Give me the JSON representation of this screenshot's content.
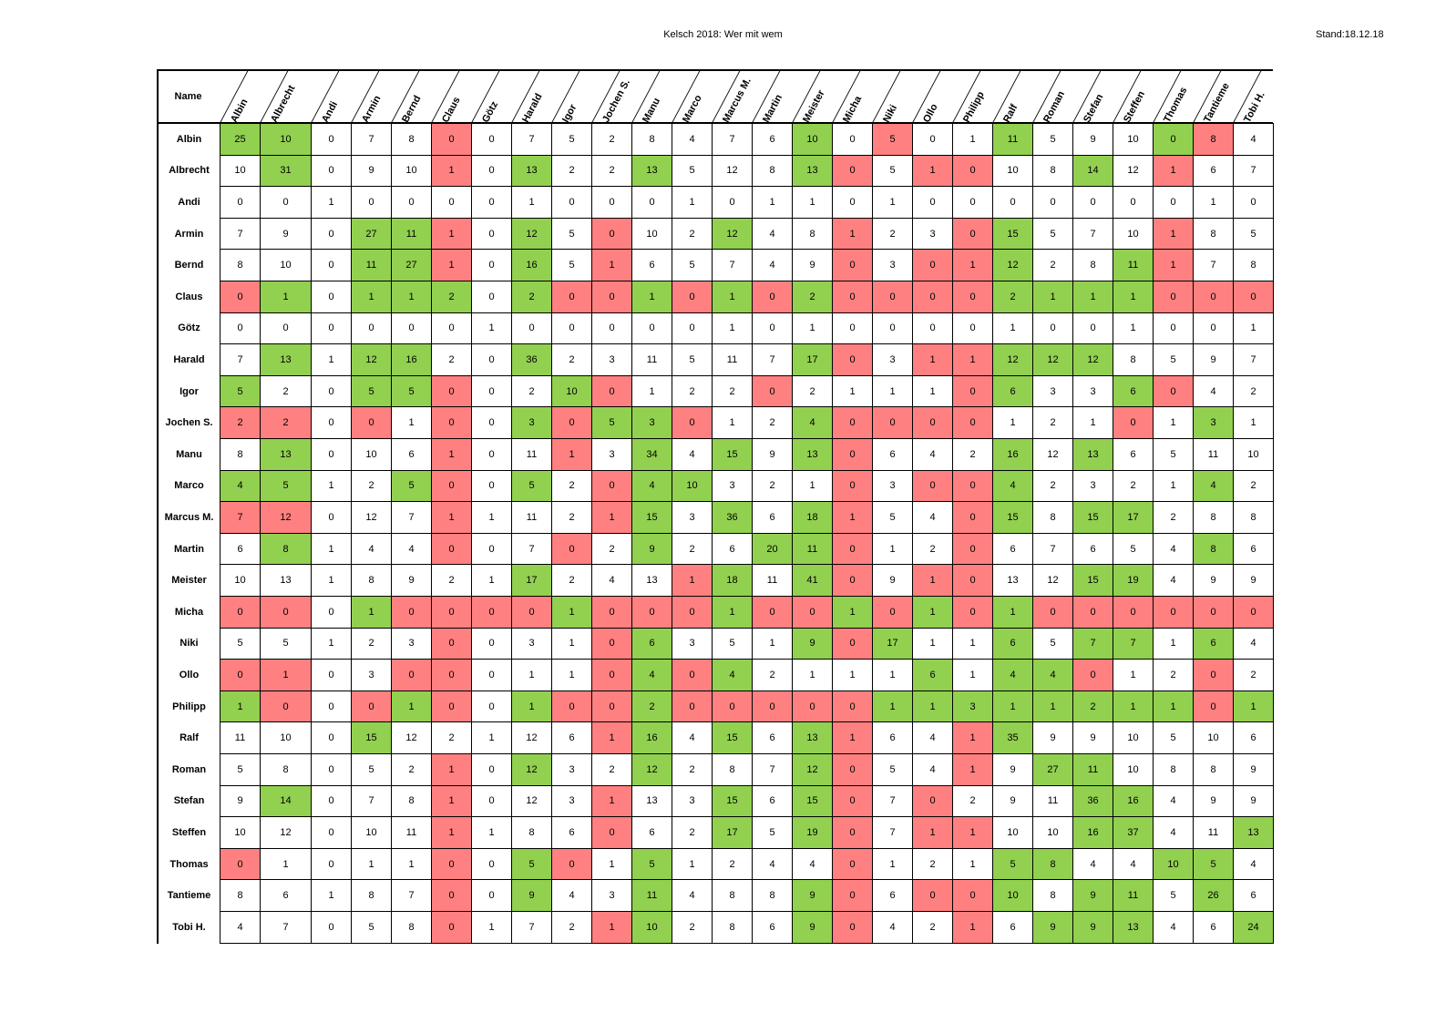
{
  "page": {
    "title": "Kelsch 2018: Wer mit wem",
    "stand": "Stand:18.12.18"
  },
  "table": {
    "corner_label": "Name",
    "names": [
      "Albin",
      "Albrecht",
      "Andi",
      "Armin",
      "Bernd",
      "Claus",
      "Götz",
      "Harald",
      "Igor",
      "Jochen S.",
      "Manu",
      "Marco",
      "Marcus M.",
      "Martin",
      "Meister",
      "Micha",
      "Niki",
      "Ollo",
      "Philipp",
      "Ralf",
      "Roman",
      "Stefan",
      "Steffen",
      "Thomas",
      "Tantieme",
      "Tobi H."
    ],
    "colors": {
      "green": "#92d050",
      "red": "#ff8080",
      "white": "#ffffff"
    },
    "rows": [
      {
        "values": [
          25,
          10,
          0,
          7,
          8,
          0,
          0,
          7,
          5,
          2,
          8,
          4,
          7,
          6,
          10,
          0,
          5,
          0,
          1,
          11,
          5,
          9,
          10,
          0,
          8,
          4
        ],
        "marks": "GG...R........G.R..G...GR.."
      },
      {
        "values": [
          10,
          31,
          0,
          9,
          10,
          1,
          0,
          13,
          2,
          2,
          13,
          5,
          12,
          8,
          13,
          0,
          5,
          1,
          0,
          10,
          8,
          14,
          12,
          1,
          6,
          7
        ],
        "marks": ".G...R.G..G...GR.RR..G.R.."
      },
      {
        "values": [
          0,
          0,
          1,
          0,
          0,
          0,
          0,
          1,
          0,
          0,
          0,
          1,
          0,
          1,
          1,
          0,
          1,
          0,
          0,
          0,
          0,
          0,
          0,
          0,
          1,
          0
        ],
        "marks": ".........................."
      },
      {
        "values": [
          7,
          9,
          0,
          27,
          11,
          1,
          0,
          12,
          5,
          0,
          10,
          2,
          12,
          4,
          8,
          1,
          2,
          3,
          0,
          15,
          5,
          7,
          10,
          1,
          8,
          5
        ],
        "marks": "...GGR.G.R..G..R..RG...R.."
      },
      {
        "values": [
          8,
          10,
          0,
          11,
          27,
          1,
          0,
          16,
          5,
          1,
          6,
          5,
          7,
          4,
          9,
          0,
          3,
          0,
          1,
          12,
          2,
          8,
          11,
          1,
          7,
          8
        ],
        "marks": "...GGR.G.R.....R.RRG..GR.."
      },
      {
        "values": [
          0,
          1,
          0,
          1,
          1,
          2,
          0,
          2,
          0,
          0,
          1,
          0,
          1,
          0,
          2,
          0,
          0,
          0,
          0,
          2,
          1,
          1,
          1,
          0,
          0,
          0
        ],
        "marks": "RG.GGG.GRRGRGRGRRRRGGGGRRR"
      },
      {
        "values": [
          0,
          0,
          0,
          0,
          0,
          0,
          1,
          0,
          0,
          0,
          0,
          0,
          1,
          0,
          1,
          0,
          0,
          0,
          0,
          1,
          0,
          0,
          1,
          0,
          0,
          1
        ],
        "marks": ".........................."
      },
      {
        "values": [
          7,
          13,
          1,
          12,
          16,
          2,
          0,
          36,
          2,
          3,
          11,
          5,
          11,
          7,
          17,
          0,
          3,
          1,
          1,
          12,
          12,
          12,
          8,
          5,
          9,
          7
        ],
        "marks": ".G.GG..G......GR.RRGGG...."
      },
      {
        "values": [
          5,
          2,
          0,
          5,
          5,
          0,
          0,
          2,
          10,
          0,
          1,
          2,
          2,
          0,
          2,
          1,
          1,
          1,
          0,
          6,
          3,
          3,
          6,
          0,
          4,
          2
        ],
        "marks": "G..GGR..GR...R....RG..GR.."
      },
      {
        "values": [
          2,
          2,
          0,
          0,
          1,
          0,
          0,
          3,
          0,
          5,
          3,
          0,
          1,
          2,
          4,
          0,
          0,
          0,
          0,
          1,
          2,
          1,
          0,
          1,
          3,
          1
        ],
        "marks": "RR.R.R.GRGGR..GRRRR...R.G."
      },
      {
        "values": [
          8,
          13,
          0,
          10,
          6,
          1,
          0,
          11,
          1,
          3,
          34,
          4,
          15,
          9,
          13,
          0,
          6,
          4,
          2,
          16,
          12,
          13,
          6,
          5,
          11,
          10
        ],
        "marks": ".G...R..R.G.G.GR...G.G...."
      },
      {
        "values": [
          4,
          5,
          1,
          2,
          5,
          0,
          0,
          5,
          2,
          0,
          4,
          10,
          3,
          2,
          1,
          0,
          3,
          0,
          0,
          4,
          2,
          3,
          2,
          1,
          4,
          2
        ],
        "marks": "GG..GR.G.RGG...R.RRG....G."
      },
      {
        "values": [
          7,
          12,
          0,
          12,
          7,
          1,
          1,
          11,
          2,
          1,
          15,
          3,
          36,
          6,
          18,
          1,
          5,
          4,
          0,
          15,
          8,
          15,
          17,
          2,
          8,
          8
        ],
        "marks": "RR...R...RG.G.GR..RG.GG..."
      },
      {
        "values": [
          6,
          8,
          1,
          4,
          4,
          0,
          0,
          7,
          0,
          2,
          9,
          2,
          6,
          20,
          11,
          0,
          1,
          2,
          0,
          6,
          7,
          6,
          5,
          4,
          8,
          6
        ],
        "marks": ".G...R..R.G..GGR..R.....G."
      },
      {
        "values": [
          10,
          13,
          1,
          8,
          9,
          2,
          1,
          17,
          2,
          4,
          13,
          1,
          18,
          11,
          41,
          0,
          9,
          1,
          0,
          13,
          12,
          15,
          19,
          4,
          9,
          9
        ],
        "marks": ".......G...RG.GR.RR..GG..."
      },
      {
        "values": [
          0,
          0,
          0,
          1,
          0,
          0,
          0,
          0,
          1,
          0,
          0,
          0,
          1,
          0,
          0,
          1,
          0,
          1,
          0,
          1,
          0,
          0,
          0,
          0,
          0,
          0
        ],
        "marks": "RR.GRRRRGRRRGRRGRGRGRRRRRR"
      },
      {
        "values": [
          5,
          5,
          1,
          2,
          3,
          0,
          0,
          3,
          1,
          0,
          6,
          3,
          5,
          1,
          9,
          0,
          17,
          1,
          1,
          6,
          5,
          7,
          7,
          1,
          6,
          4
        ],
        "marks": ".....R...RG...GRG..G.GG.G."
      },
      {
        "values": [
          0,
          1,
          0,
          3,
          0,
          0,
          0,
          1,
          1,
          0,
          4,
          0,
          4,
          2,
          1,
          1,
          1,
          6,
          1,
          4,
          4,
          0,
          1,
          2,
          0,
          2
        ],
        "marks": "RR..RR...RGRG....G.GGR..R."
      },
      {
        "values": [
          1,
          0,
          0,
          0,
          1,
          0,
          0,
          1,
          0,
          0,
          2,
          0,
          0,
          0,
          0,
          0,
          1,
          1,
          3,
          1,
          1,
          2,
          1,
          1,
          0,
          1
        ],
        "marks": "GR.RGR.GRRGRRRRRGGGGGGGGRG"
      },
      {
        "values": [
          11,
          10,
          0,
          15,
          12,
          2,
          1,
          12,
          6,
          1,
          16,
          4,
          15,
          6,
          13,
          1,
          6,
          4,
          1,
          35,
          9,
          9,
          10,
          5,
          10,
          6
        ],
        "marks": "...G.....RG.G.GR..RG......"
      },
      {
        "values": [
          5,
          8,
          0,
          5,
          2,
          1,
          0,
          12,
          3,
          2,
          12,
          2,
          8,
          7,
          12,
          0,
          5,
          4,
          1,
          9,
          27,
          11,
          10,
          8,
          8,
          9
        ],
        "marks": ".....R.G..G...GR..R.GG...."
      },
      {
        "values": [
          9,
          14,
          0,
          7,
          8,
          1,
          0,
          12,
          3,
          1,
          13,
          3,
          15,
          6,
          15,
          0,
          7,
          0,
          2,
          9,
          11,
          36,
          16,
          4,
          9,
          9
        ],
        "marks": ".G...R...R..G.GR.R...GG..."
      },
      {
        "values": [
          10,
          12,
          0,
          10,
          11,
          1,
          1,
          8,
          6,
          0,
          6,
          2,
          17,
          5,
          19,
          0,
          7,
          1,
          1,
          10,
          10,
          16,
          37,
          4,
          11,
          13
        ],
        "marks": ".....R...R..G.GR.RR..GG..G"
      },
      {
        "values": [
          0,
          1,
          0,
          1,
          1,
          0,
          0,
          5,
          0,
          1,
          5,
          1,
          2,
          4,
          4,
          0,
          1,
          2,
          1,
          5,
          8,
          4,
          4,
          10,
          5,
          4
        ],
        "marks": "R....R.GR.G....R...GG..GG."
      },
      {
        "values": [
          8,
          6,
          1,
          8,
          7,
          0,
          0,
          9,
          4,
          3,
          11,
          4,
          8,
          8,
          9,
          0,
          6,
          0,
          0,
          10,
          8,
          9,
          11,
          5,
          26,
          6
        ],
        "marks": ".....R.G..G...GR.RRG.GG.G."
      },
      {
        "values": [
          4,
          7,
          0,
          5,
          8,
          0,
          1,
          7,
          2,
          1,
          10,
          2,
          8,
          6,
          9,
          0,
          4,
          2,
          1,
          6,
          9,
          9,
          13,
          4,
          6,
          24
        ],
        "marks": ".....R...RG...GR..R.GGG..G"
      }
    ]
  }
}
